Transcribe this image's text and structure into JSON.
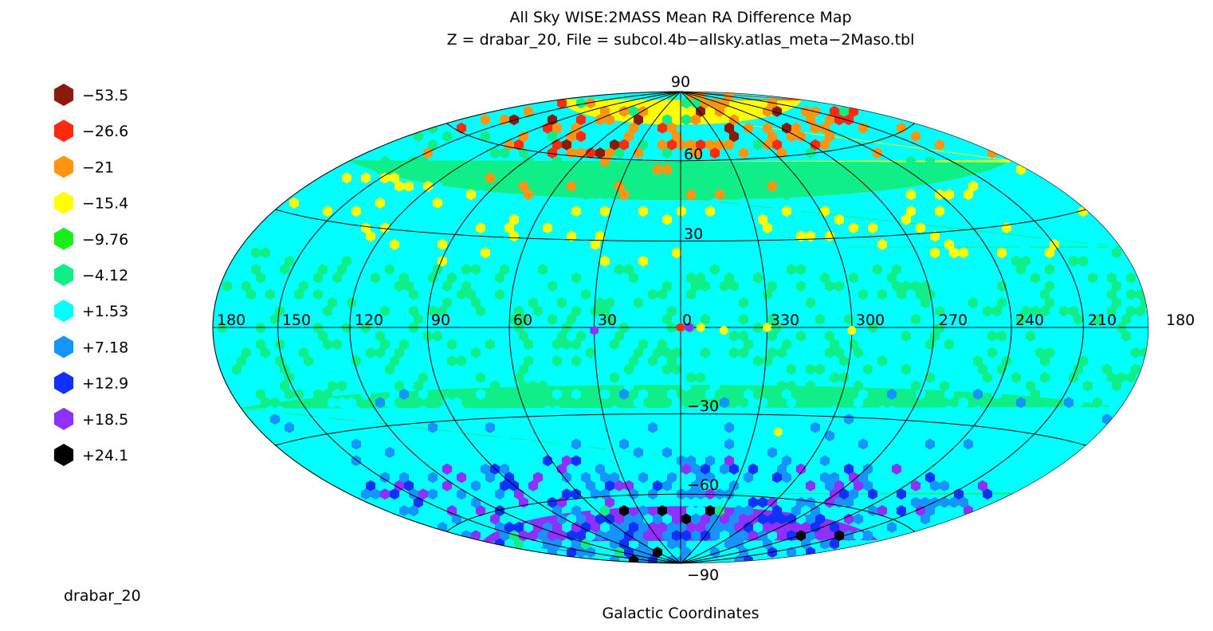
{
  "chart_data": {
    "type": "heatmap",
    "projection": "aitoff-hammer",
    "title": "All Sky WISE:2MASS Mean RA Difference Map",
    "subtitle": "Z = drabar_20, File = subcol.4b−allsky.atlas_meta−2Maso.tbl",
    "footer_left": "drabar_20",
    "footer_center": "Galactic Coordinates",
    "longitude_ticks": [
      "180",
      "150",
      "120",
      "90",
      "60",
      "30",
      "0",
      "330",
      "300",
      "270",
      "240",
      "210",
      "180"
    ],
    "latitude_ticks": [
      "90",
      "60",
      "30",
      "−30",
      "−60",
      "−90"
    ],
    "grid": true,
    "legend_position": "left",
    "legend": [
      {
        "label": "−53.5",
        "color": "#8b1a0a"
      },
      {
        "label": "−26.6",
        "color": "#ff2a10"
      },
      {
        "label": "−21",
        "color": "#ff9410"
      },
      {
        "label": "−15.4",
        "color": "#ffff00"
      },
      {
        "label": "−9.76",
        "color": "#1aee1a"
      },
      {
        "label": "−4.12",
        "color": "#10ee88"
      },
      {
        "label": "+1.53",
        "color": "#00ffff"
      },
      {
        "label": "+7.18",
        "color": "#1494ff"
      },
      {
        "label": "+12.9",
        "color": "#1030ff"
      },
      {
        "label": "+18.5",
        "color": "#9030ff"
      },
      {
        "label": "+24.1",
        "color": "#000000"
      }
    ],
    "latitude_bands": [
      {
        "lat_range": [
          75,
          90
        ],
        "base": "−26.6"
      },
      {
        "lat_range": [
          45,
          75
        ],
        "base": "−15.4"
      },
      {
        "lat_range": [
          20,
          45
        ],
        "base": "−4.12"
      },
      {
        "lat_range": [
          -20,
          20
        ],
        "base": "+1.53"
      },
      {
        "lat_range": [
          -45,
          -20
        ],
        "base": "−4.12"
      },
      {
        "lat_range": [
          -65,
          -45
        ],
        "base": "+1.53"
      },
      {
        "lat_range": [
          -90,
          -65
        ],
        "base": "+18.5"
      }
    ],
    "highlight_points": [
      {
        "l": 0,
        "b": 0,
        "value": "−26.6"
      },
      {
        "l": 357,
        "b": 0,
        "value": "+18.5"
      },
      {
        "l": 30,
        "b": -1,
        "value": "+18.5"
      },
      {
        "l": 353,
        "b": 0,
        "value": "−15.4"
      },
      {
        "l": 345,
        "b": -1,
        "value": "−15.4"
      },
      {
        "l": 330,
        "b": 0,
        "value": "−15.4"
      },
      {
        "l": 300,
        "b": -1,
        "value": "−15.4"
      },
      {
        "l": 320,
        "b": -36,
        "value": "−15.4"
      }
    ]
  }
}
